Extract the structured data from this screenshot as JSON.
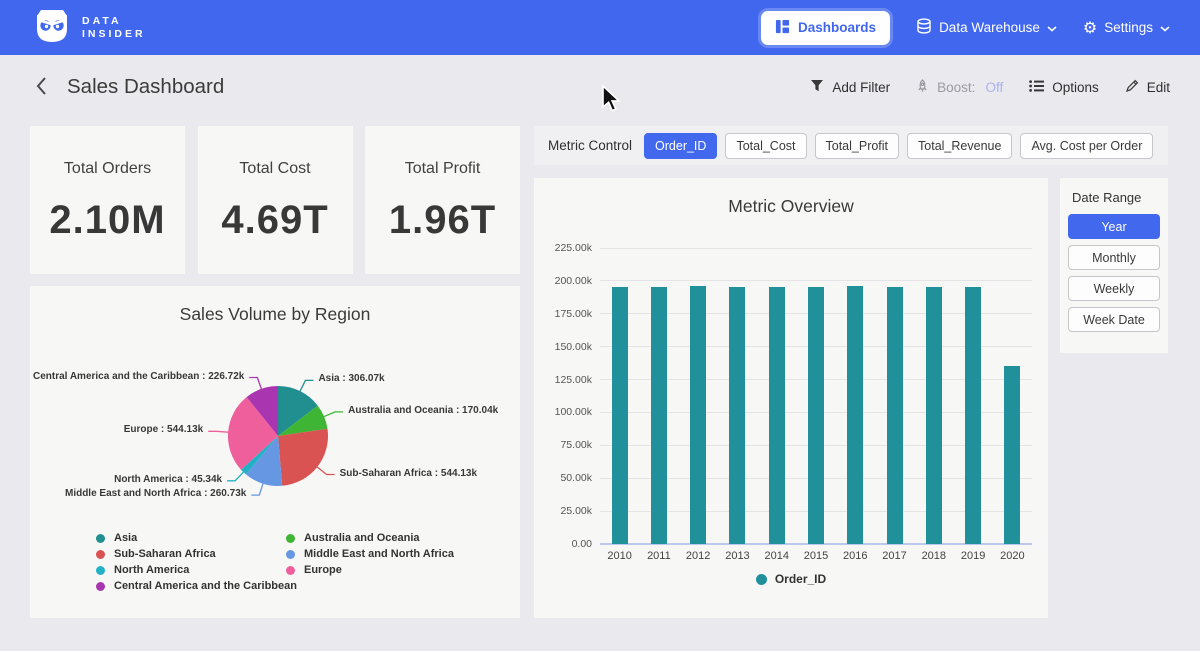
{
  "navbar": {
    "bg_color": "#4167ee",
    "brand_line1": "DATA",
    "brand_line2": "INSIDER",
    "dashboards_label": "Dashboards",
    "data_warehouse_label": "Data Warehouse",
    "settings_label": "Settings"
  },
  "header": {
    "title": "Sales Dashboard",
    "add_filter_label": "Add Filter",
    "boost_label": "Boost:",
    "boost_value": "Off",
    "boost_value_color": "#a9b2f0",
    "options_label": "Options",
    "edit_label": "Edit"
  },
  "kpis": [
    {
      "label": "Total Orders",
      "value": "2.10M"
    },
    {
      "label": "Total Cost",
      "value": "4.69T"
    },
    {
      "label": "Total Profit",
      "value": "1.96T"
    }
  ],
  "metric_control": {
    "label": "Metric Control",
    "buttons": [
      {
        "label": "Order_ID",
        "active": true
      },
      {
        "label": "Total_Cost",
        "active": false
      },
      {
        "label": "Total_Profit",
        "active": false
      },
      {
        "label": "Total_Revenue",
        "active": false
      },
      {
        "label": "Avg. Cost per Order",
        "active": false
      }
    ]
  },
  "date_range": {
    "label": "Date Range",
    "buttons": [
      {
        "label": "Year",
        "active": true
      },
      {
        "label": "Monthly",
        "active": false
      },
      {
        "label": "Weekly",
        "active": false
      },
      {
        "label": "Week Date",
        "active": false
      }
    ]
  },
  "colors": {
    "accent_blue": "#4167ee",
    "page_bg": "#e9e9ee",
    "card_bg": "#f7f7f6",
    "bar_teal": "#20919b"
  },
  "chart_data": [
    {
      "type": "bar",
      "title": "Metric Overview",
      "categories": [
        "2010",
        "2011",
        "2012",
        "2013",
        "2014",
        "2015",
        "2016",
        "2017",
        "2018",
        "2019",
        "2020"
      ],
      "values": [
        195500,
        195500,
        196200,
        195400,
        195300,
        195400,
        196300,
        195400,
        195300,
        195400,
        135500
      ],
      "y_ticks": [
        "225.00k",
        "200.00k",
        "175.00k",
        "150.00k",
        "125.00k",
        "100.00k",
        "75.00k",
        "50.00k",
        "25.00k",
        "0.00"
      ],
      "ylim": [
        0,
        225000
      ],
      "grid": true,
      "xlabel": "",
      "ylabel": "",
      "legend_position": "bottom",
      "legend": [
        {
          "label": "Order_ID",
          "color": "#20919b"
        }
      ]
    },
    {
      "type": "pie",
      "title": "Sales Volume by Region",
      "slices": [
        {
          "label": "Asia",
          "value": 306.07,
          "display": "Asia : 306.07k",
          "color": "#218f8f"
        },
        {
          "label": "Australia and Oceania",
          "value": 170.04,
          "display": "Australia and Oceania : 170.04k",
          "color": "#3eb535"
        },
        {
          "label": "Sub-Saharan Africa",
          "value": 544.13,
          "display": "Sub-Saharan Africa : 544.13k",
          "color": "#d95353"
        },
        {
          "label": "Middle East and North Africa",
          "value": 260.73,
          "display": "Middle East and North Africa : 260.73k",
          "color": "#6697e2"
        },
        {
          "label": "North America",
          "value": 45.34,
          "display": "North America : 45.34k",
          "color": "#23b2c5"
        },
        {
          "label": "Europe",
          "value": 544.13,
          "display": "Europe : 544.13k",
          "color": "#ee5f9c"
        },
        {
          "label": "Central America and the Caribbean",
          "value": 226.72,
          "display": "Central America and the Caribbean : 226.72k",
          "color": "#a935b0"
        }
      ],
      "unit": "k",
      "legend_position": "bottom",
      "legend_columns": [
        [
          "Asia",
          "Sub-Saharan Africa",
          "North America",
          "Central America and the Caribbean"
        ],
        [
          "Australia and Oceania",
          "Middle East and North Africa",
          "Europe"
        ]
      ]
    }
  ]
}
